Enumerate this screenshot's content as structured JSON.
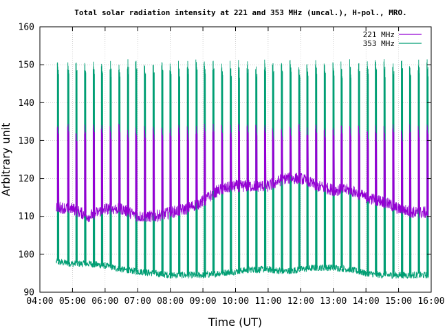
{
  "chart_data": {
    "type": "line",
    "title": "Total solar radiation intensity at 221 and 353 MHz (uncal.), H-pol., MRO.",
    "xlabel": "Time (UT)",
    "ylabel": "Arbitrary unit",
    "xlim": [
      "04:00",
      "16:00"
    ],
    "ylim": [
      90,
      160
    ],
    "x_ticks": [
      "04:00",
      "05:00",
      "06:00",
      "07:00",
      "08:00",
      "09:00",
      "10:00",
      "11:00",
      "12:00",
      "13:00",
      "14:00",
      "15:00",
      "16:00"
    ],
    "y_ticks": [
      90,
      100,
      110,
      120,
      130,
      140,
      150,
      160
    ],
    "grid": true,
    "legend_position": "top-right",
    "series": [
      {
        "name": "221 MHz",
        "color": "#9400d3",
        "x": [
          "04:30",
          "05:00",
          "05:30",
          "06:00",
          "06:30",
          "07:00",
          "07:30",
          "08:00",
          "08:30",
          "09:00",
          "09:30",
          "10:00",
          "10:30",
          "11:00",
          "11:30",
          "12:00",
          "12:30",
          "13:00",
          "13:30",
          "14:00",
          "14:30",
          "15:00",
          "15:30",
          "15:55"
        ],
        "values": [
          112.5,
          112,
          110,
          112,
          112,
          110,
          110,
          111,
          112,
          114,
          117,
          118,
          118,
          118,
          120,
          120,
          118,
          117,
          117,
          115,
          114,
          112,
          111,
          111
        ],
        "calibration_spike_peak": 133,
        "calibration_spike_floor": 124
      },
      {
        "name": "353 MHz",
        "color": "#009e73",
        "x": [
          "04:30",
          "05:00",
          "05:30",
          "06:00",
          "06:30",
          "07:00",
          "07:30",
          "08:00",
          "08:30",
          "09:00",
          "09:30",
          "10:00",
          "10:30",
          "11:00",
          "11:30",
          "12:00",
          "12:30",
          "13:00",
          "13:30",
          "14:00",
          "14:30",
          "15:00",
          "15:30",
          "15:55"
        ],
        "values": [
          98,
          97.5,
          97.5,
          97,
          96,
          95.5,
          95,
          94.5,
          94.5,
          94.5,
          95,
          95.5,
          96,
          96,
          95.5,
          96,
          96.5,
          96.5,
          96,
          95,
          94.5,
          94.5,
          94.5,
          94.5
        ],
        "calibration_spike_peak": 150,
        "calibration_spike_floor": 123
      }
    ],
    "calibration_times": [
      "04:32",
      "04:51",
      "05:06",
      "05:22",
      "05:38",
      "05:53",
      "06:09",
      "06:25",
      "06:41",
      "06:56",
      "07:12",
      "07:28",
      "07:44",
      "07:59",
      "08:15",
      "08:31",
      "08:47",
      "09:02",
      "09:18",
      "09:34",
      "09:50",
      "10:05",
      "10:21",
      "10:37",
      "10:53",
      "11:08",
      "11:24",
      "11:40",
      "11:56",
      "12:11",
      "12:27",
      "12:43",
      "12:59",
      "13:14",
      "13:30",
      "13:46",
      "14:02",
      "14:17",
      "14:33",
      "14:49",
      "15:05",
      "15:20",
      "15:36",
      "15:52"
    ]
  }
}
